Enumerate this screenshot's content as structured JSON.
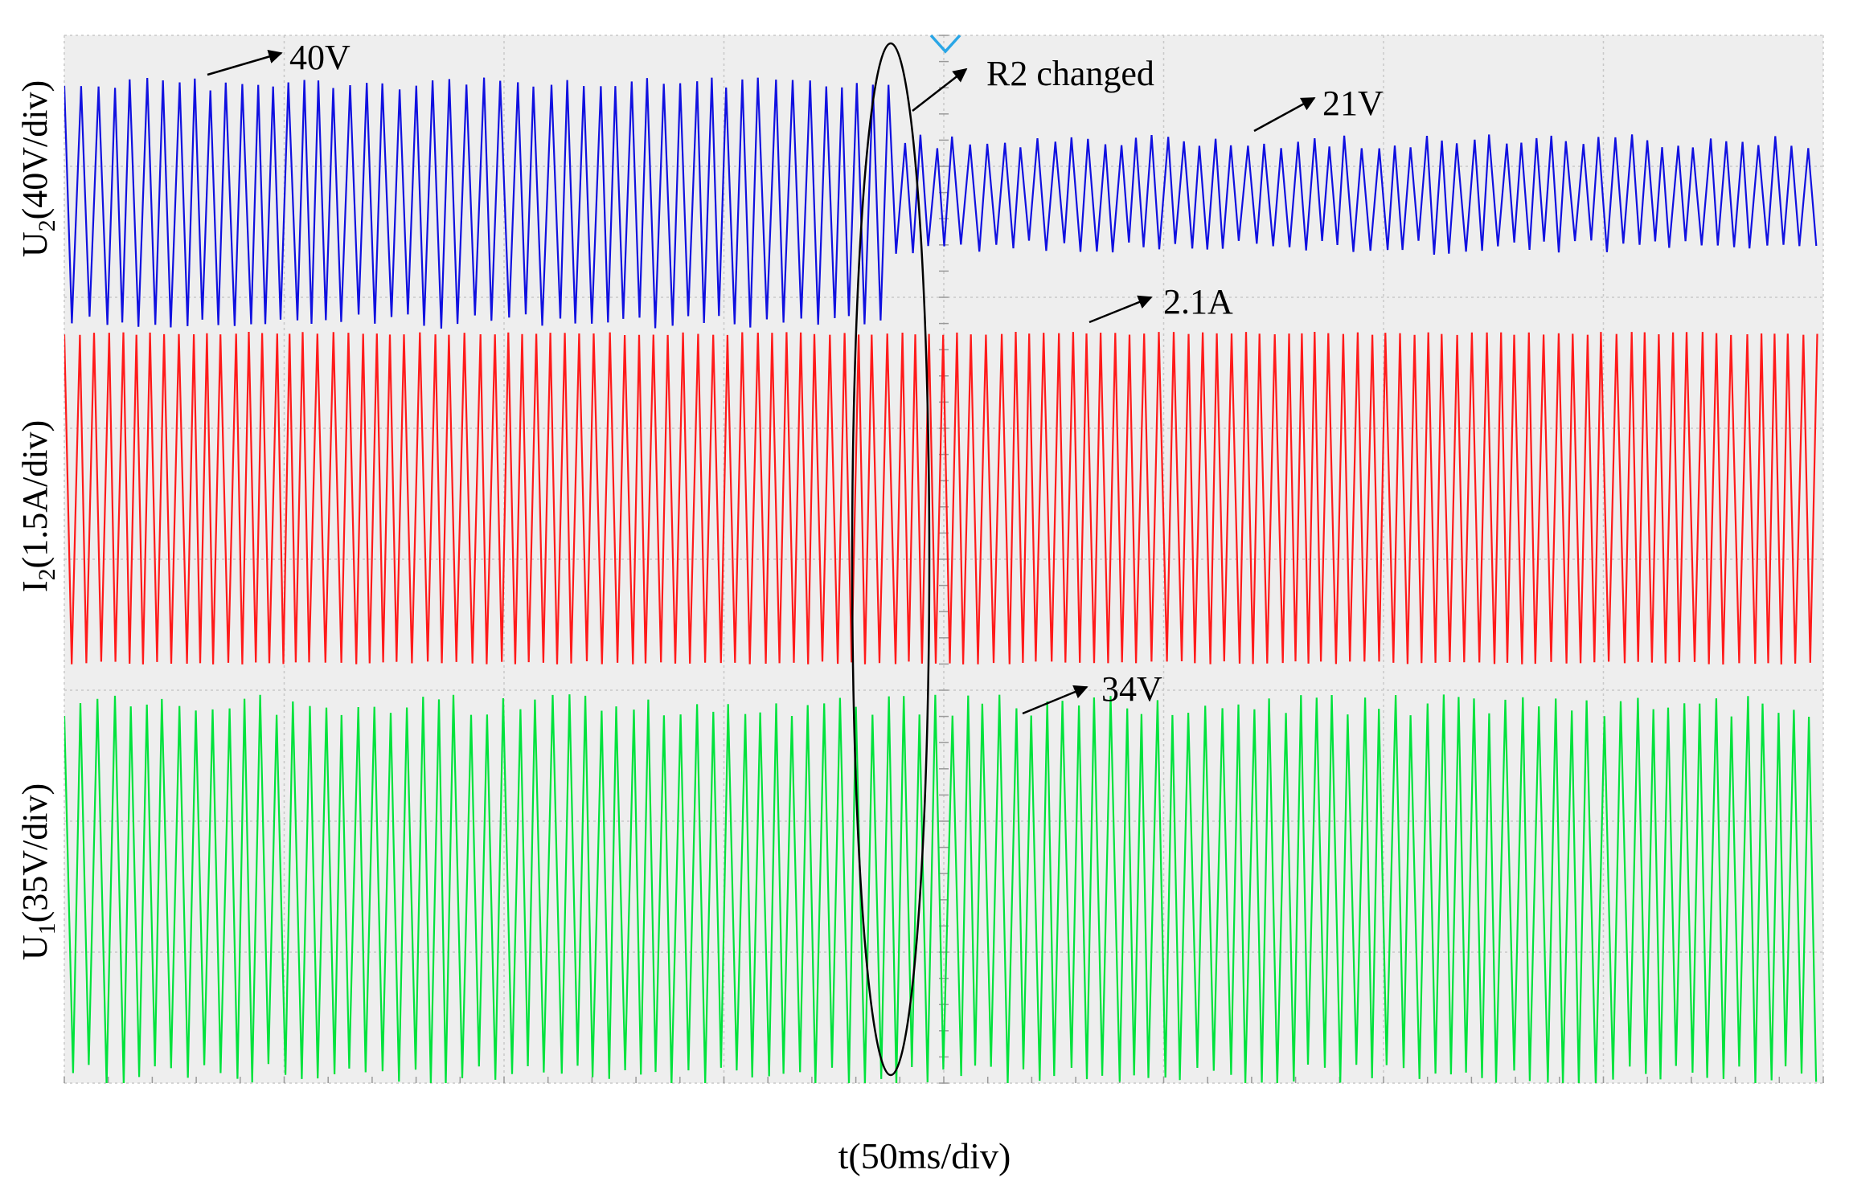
{
  "chart_data": {
    "type": "line",
    "title": "",
    "xlabel": "t(50ms/div)",
    "x_divisions": 8,
    "y_divisions": 8,
    "grid": true,
    "trigger_marker": "blue-chevron",
    "series": [
      {
        "name": "U2",
        "label_main": "U",
        "label_sub": "2",
        "label_scale": "(40V/div)",
        "color": "#1010e0",
        "unit": "V",
        "amplitude_before": 40,
        "amplitude_after": 21
      },
      {
        "name": "I2",
        "label_main": "I",
        "label_sub": "2",
        "label_scale": "(1.5A/div)",
        "color": "#ff1a1a",
        "unit": "A",
        "amplitude": 2.1
      },
      {
        "name": "U1",
        "label_main": "U",
        "label_sub": "1",
        "label_scale": "(35V/div)",
        "color": "#00e23c",
        "unit": "V",
        "amplitude": 34
      }
    ],
    "annotations": [
      {
        "id": "u2-before",
        "text": "40V"
      },
      {
        "id": "r2-event",
        "text": "R2 changed"
      },
      {
        "id": "u2-after",
        "text": "21V"
      },
      {
        "id": "i2-amp",
        "text": "2.1A"
      },
      {
        "id": "u1-amp",
        "text": "34V"
      }
    ]
  }
}
